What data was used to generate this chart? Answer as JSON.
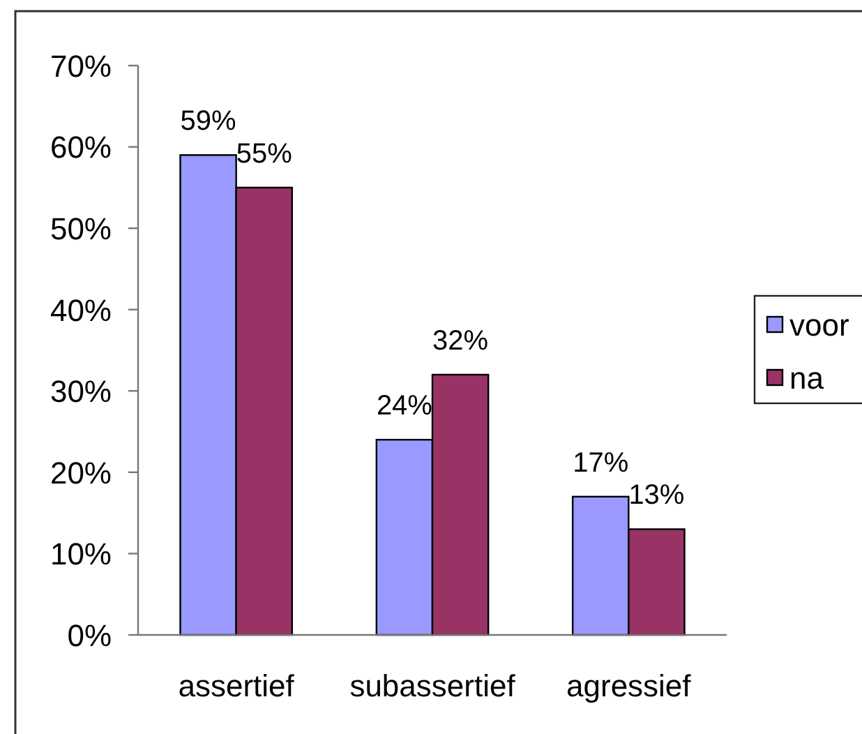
{
  "chart_data": {
    "type": "bar",
    "categories": [
      "assertief",
      "subassertief",
      "agressief"
    ],
    "series": [
      {
        "name": "voor",
        "color": "#9999ff",
        "values": [
          59,
          24,
          17
        ],
        "value_labels": [
          "59%",
          "24%",
          "17%"
        ]
      },
      {
        "name": "na",
        "color": "#993366",
        "values": [
          55,
          32,
          13
        ],
        "value_labels": [
          "55%",
          "32%",
          "13%"
        ]
      }
    ],
    "ylim": [
      0,
      70
    ],
    "yticks": [
      {
        "value": 0,
        "label": "0%"
      },
      {
        "value": 10,
        "label": "10%"
      },
      {
        "value": 20,
        "label": "20%"
      },
      {
        "value": 30,
        "label": "30%"
      },
      {
        "value": 40,
        "label": "40%"
      },
      {
        "value": 50,
        "label": "50%"
      },
      {
        "value": 60,
        "label": "60%"
      },
      {
        "value": 70,
        "label": "70%"
      }
    ],
    "grid": false,
    "legend": "right"
  }
}
